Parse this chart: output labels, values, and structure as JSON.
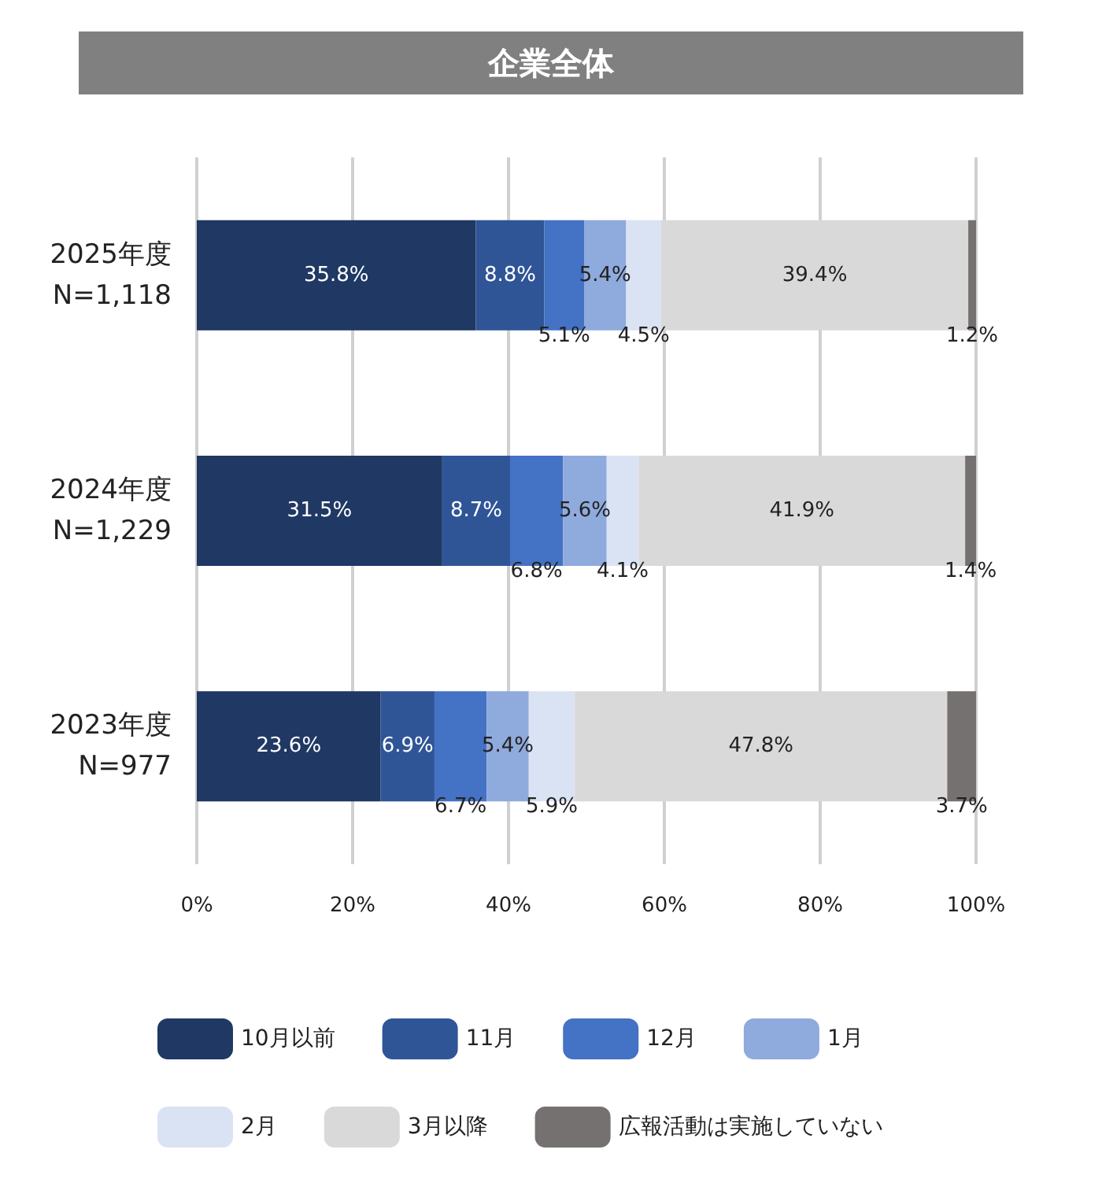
{
  "chart_data": {
    "type": "bar",
    "orientation": "horizontal",
    "stacked": true,
    "title": "企業全体",
    "categories": [
      "2025年度\nN=1,118",
      "2024年度\nN=1,229",
      "2023年度\nN=977"
    ],
    "series": [
      {
        "name": "10月以前",
        "color": "#1f3864",
        "values": [
          35.8,
          31.5,
          23.6
        ],
        "value_labels": [
          "35.8%",
          "31.5%",
          "23.6%"
        ]
      },
      {
        "name": "11月",
        "color": "#2f5597",
        "values": [
          8.8,
          8.7,
          6.9
        ],
        "value_labels": [
          "8.8%",
          "8.7%",
          "6.9%"
        ]
      },
      {
        "name": "12月",
        "color": "#4472c4",
        "values": [
          5.1,
          6.8,
          6.7
        ],
        "value_labels": [
          "5.1%",
          "6.8%",
          "6.7%"
        ]
      },
      {
        "name": "1月",
        "color": "#8faadc",
        "values": [
          5.4,
          5.6,
          5.4
        ],
        "value_labels": [
          "5.4%",
          "5.6%",
          "5.4%"
        ]
      },
      {
        "name": "2月",
        "color": "#dae3f3",
        "values": [
          4.5,
          4.1,
          5.9
        ],
        "value_labels": [
          "4.5%",
          "4.1%",
          "5.9%"
        ]
      },
      {
        "name": "3月以降",
        "color": "#d9d9d9",
        "values": [
          39.4,
          41.9,
          47.8
        ],
        "value_labels": [
          "39.4%",
          "41.9%",
          "47.8%"
        ]
      },
      {
        "name": "広報活動は実施していない",
        "color": "#767171",
        "values": [
          1.2,
          1.4,
          3.7
        ],
        "value_labels": [
          "1.2%",
          "1.4%",
          "3.7%"
        ]
      }
    ],
    "xlim": [
      0,
      100
    ],
    "xticks": [
      {
        "value": 0,
        "label": "0%"
      },
      {
        "value": 20,
        "label": "20%"
      },
      {
        "value": 40,
        "label": "40%"
      },
      {
        "value": 60,
        "label": "60%"
      },
      {
        "value": 80,
        "label": "80%"
      },
      {
        "value": 100,
        "label": "100%"
      }
    ],
    "grid": "x",
    "legend": "bottom"
  }
}
